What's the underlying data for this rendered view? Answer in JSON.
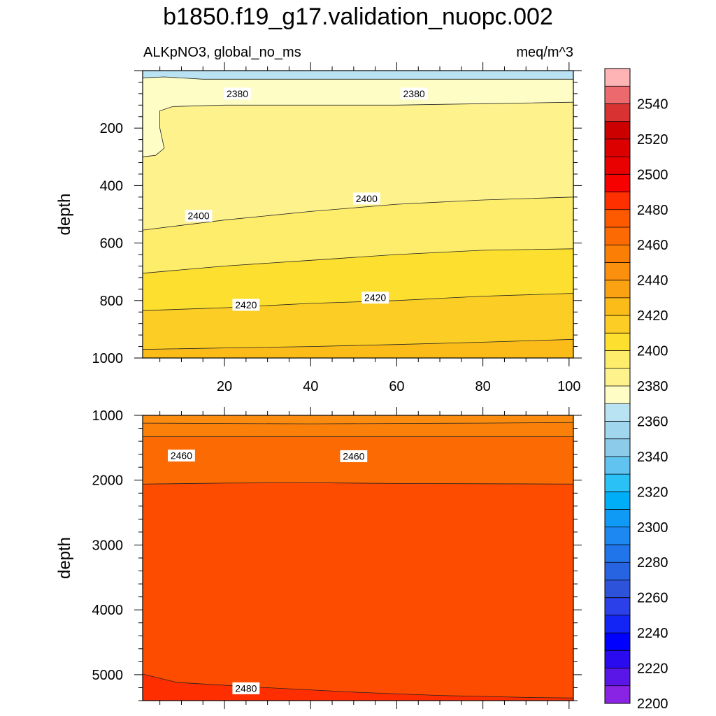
{
  "title": "b1850.f19_g17.validation_nuopc.002",
  "subtitle_left": "ALKpNO3, global_no_ms",
  "subtitle_right": "meq/m^3",
  "chart_data": [
    {
      "type": "contour",
      "panel": "upper",
      "ylabel": "depth",
      "xlabel": "",
      "xlim": [
        1,
        101
      ],
      "ylim": [
        1000,
        0
      ],
      "x_ticks": [
        20,
        40,
        60,
        80,
        100
      ],
      "y_ticks": [
        200,
        400,
        600,
        800,
        1000
      ],
      "contour_labels": [
        {
          "text": "2380",
          "x": 23,
          "depth": 80
        },
        {
          "text": "2380",
          "x": 64,
          "depth": 80
        },
        {
          "text": "2400",
          "x": 14,
          "depth": 505
        },
        {
          "text": "2400",
          "x": 53,
          "depth": 445
        },
        {
          "text": "2420",
          "x": 25,
          "depth": 815
        },
        {
          "text": "2420",
          "x": 55,
          "depth": 790
        }
      ],
      "bands": [
        {
          "value": 2375,
          "color": "#b9e3f2",
          "top": [
            [
              1,
              0
            ],
            [
              101,
              0
            ]
          ]
        },
        {
          "value": 2385,
          "color": "#fefdc6",
          "top": [
            [
              1,
              25
            ],
            [
              6,
              22
            ],
            [
              15,
              30
            ],
            [
              30,
              30
            ],
            [
              50,
              30
            ],
            [
              70,
              30
            ],
            [
              85,
              30
            ],
            [
              101,
              30
            ]
          ]
        },
        {
          "value": 2395,
          "color": "#fef28d",
          "top": [
            [
              1,
              300
            ],
            [
              4,
              295
            ],
            [
              6,
              270
            ],
            [
              5,
              200
            ],
            [
              5,
              140
            ],
            [
              8,
              125
            ],
            [
              20,
              120
            ],
            [
              40,
              120
            ],
            [
              60,
              120
            ],
            [
              80,
              115
            ],
            [
              101,
              110
            ]
          ]
        },
        {
          "value": 2405,
          "color": "#feed6a",
          "top": [
            [
              1,
              555
            ],
            [
              20,
              520
            ],
            [
              40,
              490
            ],
            [
              60,
              465
            ],
            [
              80,
              450
            ],
            [
              101,
              440
            ]
          ]
        },
        {
          "value": 2415,
          "color": "#fde02f",
          "top": [
            [
              1,
              705
            ],
            [
              20,
              680
            ],
            [
              40,
              660
            ],
            [
              60,
              640
            ],
            [
              80,
              625
            ],
            [
              101,
              620
            ]
          ]
        },
        {
          "value": 2425,
          "color": "#fccd25",
          "top": [
            [
              1,
              835
            ],
            [
              20,
              825
            ],
            [
              40,
              810
            ],
            [
              60,
              800
            ],
            [
              80,
              785
            ],
            [
              101,
              775
            ]
          ]
        },
        {
          "value": 2435,
          "color": "#fbbb19",
          "top": [
            [
              1,
              970
            ],
            [
              20,
              965
            ],
            [
              40,
              960
            ],
            [
              60,
              953
            ],
            [
              80,
              945
            ],
            [
              101,
              935
            ]
          ]
        }
      ]
    },
    {
      "type": "contour",
      "panel": "lower",
      "ylabel": "depth",
      "xlabel": "",
      "xlim": [
        1,
        101
      ],
      "ylim": [
        5400,
        1000
      ],
      "x_ticks": [
        20,
        40,
        60,
        80,
        100
      ],
      "y_ticks": [
        1000,
        2000,
        3000,
        4000,
        5000
      ],
      "contour_labels": [
        {
          "text": "2460",
          "x": 10,
          "depth": 1620
        },
        {
          "text": "2460",
          "x": 50,
          "depth": 1630
        },
        {
          "text": "2480",
          "x": 25,
          "depth": 5210
        }
      ],
      "bands": [
        {
          "value": 2445,
          "color": "#fb8c0f",
          "top": [
            [
              1,
              1000
            ],
            [
              101,
              1000
            ]
          ]
        },
        {
          "value": 2455,
          "color": "#fb800a",
          "top": [
            [
              1,
              1120
            ],
            [
              40,
              1130
            ],
            [
              80,
              1120
            ],
            [
              101,
              1110
            ]
          ]
        },
        {
          "value": 2465,
          "color": "#fc6b03",
          "top": [
            [
              1,
              1330
            ],
            [
              40,
              1330
            ],
            [
              80,
              1330
            ],
            [
              101,
              1330
            ]
          ]
        },
        {
          "value": 2475,
          "color": "#fd4c00",
          "top": [
            [
              1,
              2060
            ],
            [
              20,
              2045
            ],
            [
              40,
              2040
            ],
            [
              60,
              2050
            ],
            [
              80,
              2055
            ],
            [
              101,
              2060
            ]
          ]
        },
        {
          "value": 2485,
          "color": "#fe2e00",
          "top": [
            [
              1,
              4990
            ],
            [
              9,
              5120
            ],
            [
              30,
              5200
            ],
            [
              50,
              5270
            ],
            [
              70,
              5320
            ],
            [
              80,
              5335
            ],
            [
              90,
              5350
            ],
            [
              101,
              5360
            ]
          ]
        }
      ]
    }
  ],
  "colorbar": {
    "labels": [
      "2540",
      "2520",
      "2500",
      "2480",
      "2460",
      "2440",
      "2420",
      "2400",
      "2380",
      "2360",
      "2340",
      "2320",
      "2300",
      "2280",
      "2260",
      "2240",
      "2220",
      "2200"
    ],
    "colors": [
      "#feb4b5",
      "#ec6a6e",
      "#d83232",
      "#cd0000",
      "#dd0000",
      "#e90000",
      "#f60000",
      "#fe3000",
      "#fd5a00",
      "#fc6b03",
      "#fb7f06",
      "#fb900f",
      "#fba213",
      "#fbbb19",
      "#fccd25",
      "#fde02f",
      "#feed6a",
      "#fef28d",
      "#fefdc6",
      "#b9e3f2",
      "#a0d6ee",
      "#8ccbe9",
      "#61c4f0",
      "#2ac1f7",
      "#00aef7",
      "#0f9bf5",
      "#1d87f2",
      "#2075eb",
      "#2764e2",
      "#2c53d9",
      "#2b40e8",
      "#1325f4",
      "#0000fe",
      "#2a0bef",
      "#5a16e7",
      "#8a24e4"
    ]
  }
}
